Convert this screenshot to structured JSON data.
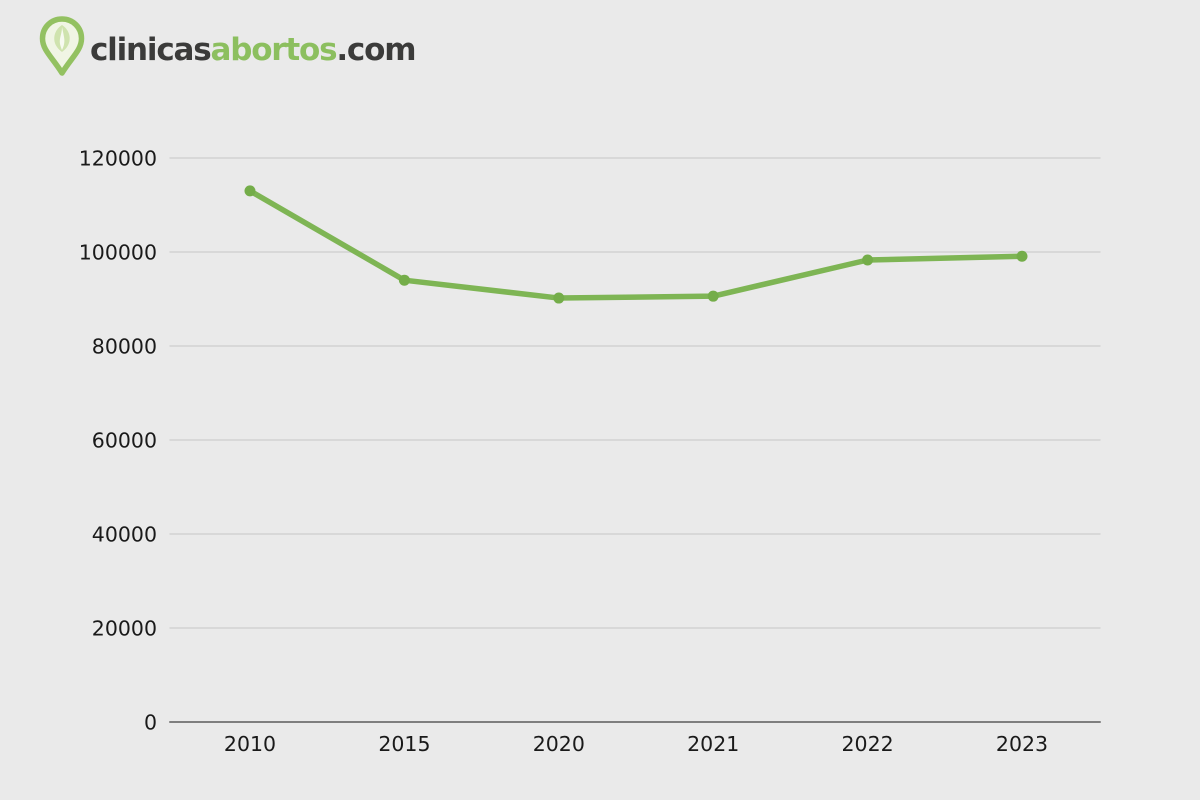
{
  "logo": {
    "icon": "map-pin-leaf-icon",
    "site_prefix": "clinicas",
    "site_highlight": "abortos",
    "site_suffix": ".com"
  },
  "chart_data": {
    "type": "line",
    "title": "",
    "xlabel": "",
    "ylabel": "",
    "categories": [
      "2010",
      "2015",
      "2020",
      "2021",
      "2022",
      "2023"
    ],
    "series": [
      {
        "name": "valores",
        "values": [
          113000,
          94000,
          90200,
          90600,
          98300,
          99100
        ]
      }
    ],
    "ylim": [
      0,
      120000
    ],
    "yticks": [
      0,
      20000,
      40000,
      60000,
      80000,
      100000,
      120000
    ],
    "ytick_labels": [
      "0",
      "20000",
      "40000",
      "60000",
      "80000",
      "100000",
      "120000"
    ],
    "grid": true,
    "legend_position": "none",
    "colors": {
      "line": "#7eb554",
      "marker": "#74ad49",
      "grid": "#d2d2d2",
      "zero_axis": "#7f7f7f",
      "tick_text": "#1a1a1a",
      "background": "#eaeaea",
      "logo_dark": "#3b3b3a",
      "logo_green": "#8cbf5f"
    }
  }
}
